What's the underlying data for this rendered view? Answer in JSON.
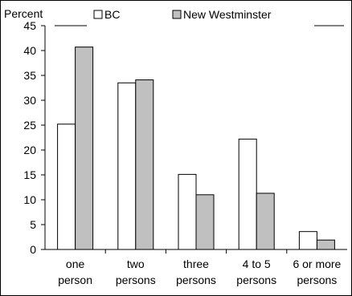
{
  "chart_data": {
    "type": "bar",
    "title": "",
    "ylabel": "Percent",
    "xlabel": "",
    "ylim": [
      0,
      45
    ],
    "yticks": [
      0,
      5,
      10,
      15,
      20,
      25,
      30,
      35,
      40,
      45
    ],
    "grid": false,
    "legend_position": "top",
    "categories": [
      [
        "one",
        "person"
      ],
      [
        "two",
        "persons"
      ],
      [
        "three",
        "persons"
      ],
      [
        "4 to 5",
        "persons"
      ],
      [
        "6 or more",
        "persons"
      ]
    ],
    "series": [
      {
        "name": "BC",
        "color": "#ffffff",
        "values": [
          25.2,
          33.5,
          15.1,
          22.2,
          3.6
        ]
      },
      {
        "name": "New Westminster",
        "color": "#c0c0c0",
        "values": [
          40.7,
          34.1,
          11.0,
          11.3,
          1.9
        ]
      }
    ]
  }
}
